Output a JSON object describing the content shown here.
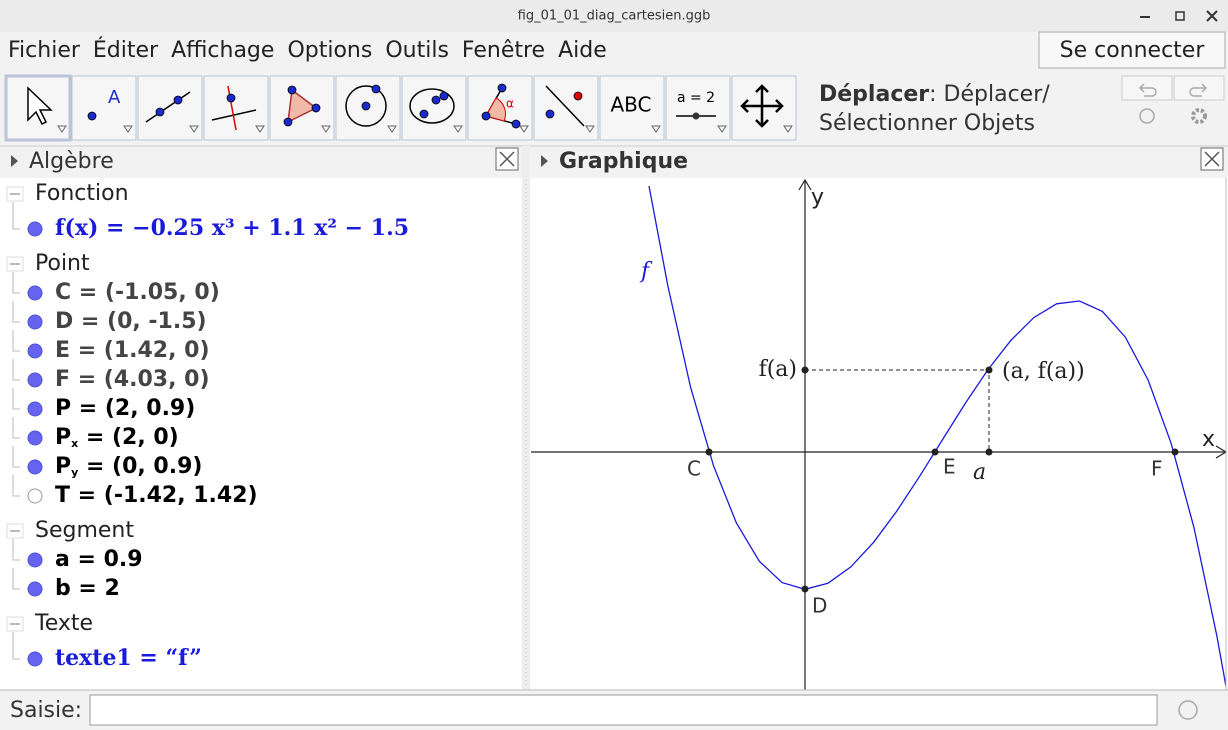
{
  "window": {
    "title": "fig_01_01_diag_cartesien.ggb"
  },
  "menu": {
    "items": [
      "Fichier",
      "Éditer",
      "Affichage",
      "Options",
      "Outils",
      "Fenêtre",
      "Aide"
    ],
    "login": "Se connecter"
  },
  "toolbar": {
    "icon_texts": {
      "point": "A",
      "angle": "α",
      "text": "ABC",
      "slider": "a = 2"
    },
    "help": {
      "name": "Déplacer",
      "line1": ": Déplacer/",
      "line2": "Sélectionner Objets"
    }
  },
  "algebra": {
    "title": "Algèbre",
    "groups": [
      {
        "name": "Fonction",
        "items": [
          {
            "label": "f(x) = −0.25 x³ + 1.1 x² − 1.5",
            "style": "formula",
            "shown": true
          }
        ]
      },
      {
        "name": "Point",
        "items": [
          {
            "label": "C = (-1.05, 0)",
            "style": "dependent",
            "shown": true
          },
          {
            "label": "D = (0, -1.5)",
            "style": "dependent",
            "shown": true
          },
          {
            "label": "E = (1.42, 0)",
            "style": "dependent",
            "shown": true
          },
          {
            "label": "F = (4.03, 0)",
            "style": "dependent",
            "shown": true
          },
          {
            "label": "P = (2, 0.9)",
            "style": "free",
            "shown": true
          },
          {
            "label": "P",
            "sub": "x",
            "tail": " = (2, 0)",
            "style": "free",
            "shown": true
          },
          {
            "label": "P",
            "sub": "y",
            "tail": " = (0, 0.9)",
            "style": "free",
            "shown": true
          },
          {
            "label": "T = (-1.42, 1.42)",
            "style": "free",
            "shown": false
          }
        ]
      },
      {
        "name": "Segment",
        "items": [
          {
            "label": "a = 0.9",
            "style": "free",
            "shown": true
          },
          {
            "label": "b = 2",
            "style": "free",
            "shown": true
          }
        ]
      },
      {
        "name": "Texte",
        "items": [
          {
            "label": "texte1 = “f”",
            "style": "formula",
            "shown": true
          }
        ]
      }
    ]
  },
  "graphics": {
    "title": "Graphique",
    "labels": {
      "y_axis": "y",
      "x_axis": "x",
      "curve": "f",
      "fa": "f(a)",
      "point_p": "(a, f(a))",
      "c": "C",
      "e": "E",
      "a": "a",
      "f_point": "F",
      "d": "D"
    }
  },
  "input": {
    "label": "Saisie:"
  }
}
